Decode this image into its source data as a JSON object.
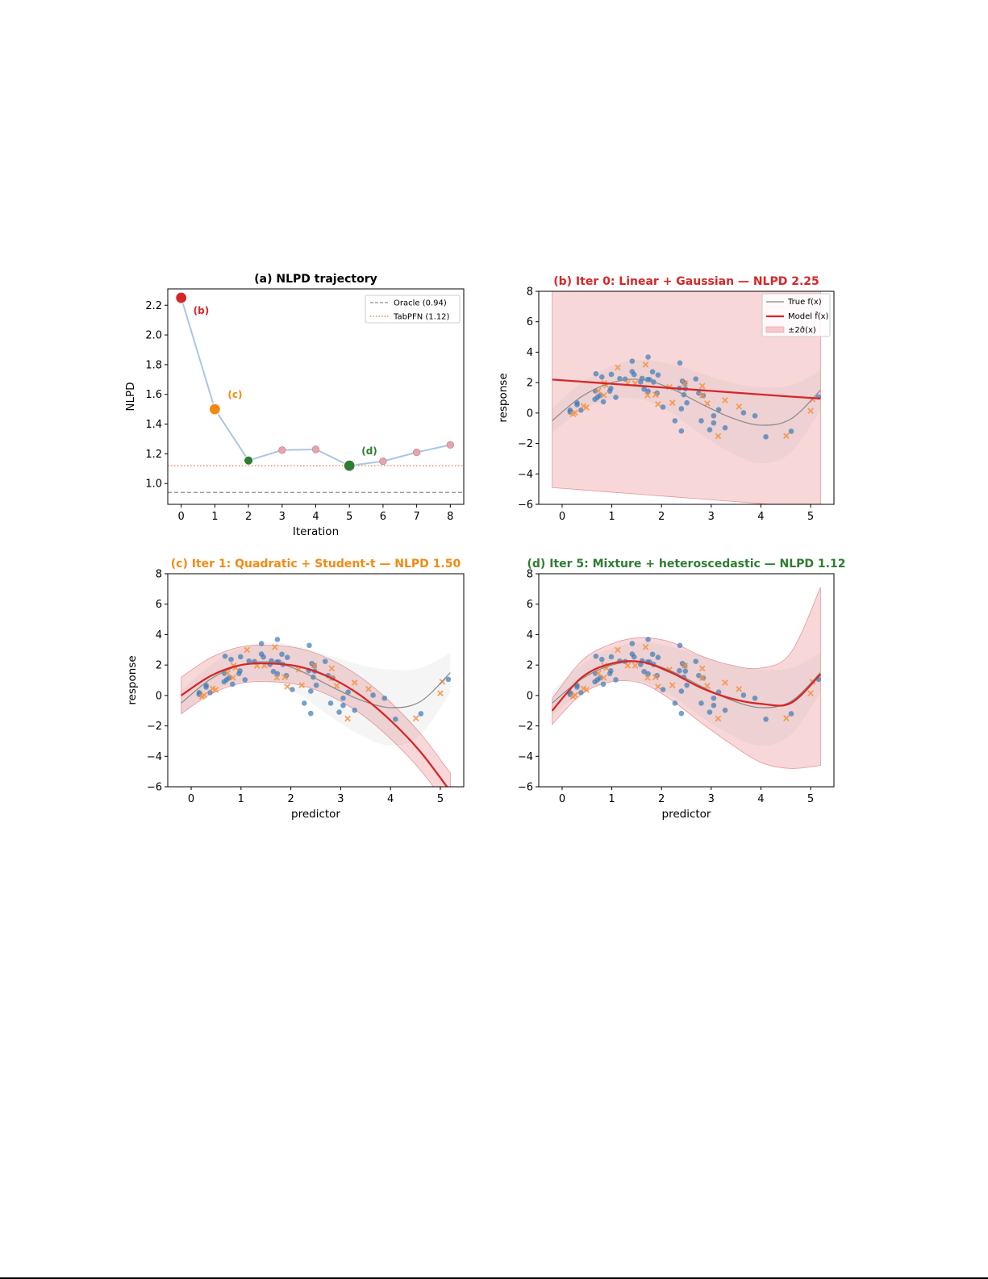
{
  "chart_data": [
    {
      "type": "line",
      "title": "(a) NLPD trajectory",
      "title_color": "#000000",
      "xlabel": "Iteration",
      "ylabel": "NLPD",
      "x": [
        0,
        1,
        2,
        3,
        4,
        5,
        6,
        7,
        8
      ],
      "y": [
        2.25,
        1.5,
        1.155,
        1.225,
        1.23,
        1.12,
        1.15,
        1.21,
        1.26
      ],
      "xlim": [
        -0.4,
        8.4
      ],
      "ylim": [
        0.86,
        2.31
      ],
      "xticks": [
        "0",
        "1",
        "2",
        "3",
        "4",
        "5",
        "6",
        "7",
        "8"
      ],
      "yticks": [
        "1.0",
        "1.2",
        "1.4",
        "1.6",
        "1.8",
        "2.0",
        "2.2"
      ],
      "line_color": "#a9c6e6",
      "highlights": [
        {
          "iteration": 0,
          "label": "(b)",
          "color": "#d62728"
        },
        {
          "iteration": 1,
          "label": "(c)",
          "color": "#f28a12"
        },
        {
          "iteration": 5,
          "label": "(d)",
          "color": "#2e7d32"
        }
      ],
      "accepted_color": "#2e7d32",
      "rejected_color": "#e8a4ad",
      "reference_lines": [
        {
          "name": "Oracle (0.94)",
          "value": 0.94,
          "style": "dashed",
          "color": "#8c8c8c"
        },
        {
          "name": "TabPFN (1.12)",
          "value": 1.12,
          "style": "dotted",
          "color": "#e07b39"
        }
      ],
      "legend": "top-right",
      "grid": false
    },
    {
      "type": "scatter",
      "title": "(b) Iter 0: Linear + Gaussian — NLPD 2.25",
      "title_color": "#d62728",
      "xlabel": "",
      "ylabel": "response",
      "xlim": [
        -0.47,
        5.47
      ],
      "ylim": [
        -6,
        8
      ],
      "model_mean": [
        2.2,
        2.06,
        1.92,
        1.78,
        1.64,
        1.5,
        1.36,
        1.22,
        1.08,
        0.95
      ],
      "model_upper": [
        9.3,
        9.5,
        9.7,
        9.9,
        10.1,
        10.3,
        10.5,
        10.7,
        10.9,
        11.1
      ],
      "model_lower": [
        -4.9,
        -5.05,
        -5.2,
        -5.35,
        -5.5,
        -5.65,
        -5.8,
        -5.95,
        -6.1,
        -6.25
      ],
      "legend_entries": [
        "True f(x)",
        "Model f̂(x)",
        "±2σ̂(x)"
      ],
      "legend": "top-right"
    },
    {
      "type": "scatter",
      "title": "(c) Iter 1: Quadratic + Student-t — NLPD 1.50",
      "title_color": "#f28a12",
      "xlabel": "predictor",
      "ylabel": "response",
      "xlim": [
        -0.47,
        5.47
      ],
      "ylim": [
        -6,
        8
      ],
      "model_mean": [
        0.0,
        1.3,
        2.0,
        2.1,
        1.87,
        1.16,
        0.0,
        -1.64,
        -3.7,
        -6.3
      ],
      "model_upper": [
        1.2,
        2.5,
        3.2,
        3.3,
        3.07,
        2.36,
        1.2,
        -0.44,
        -2.5,
        -5.1
      ],
      "model_lower": [
        -1.2,
        0.1,
        0.8,
        0.9,
        0.67,
        -0.04,
        -1.2,
        -2.84,
        -4.9,
        -7.5
      ]
    },
    {
      "type": "scatter",
      "title": "(d) Iter 5: Mixture + heteroscedastic — NLPD 1.12",
      "title_color": "#2e7d32",
      "xlabel": "predictor",
      "ylabel": "",
      "xlim": [
        -0.47,
        5.47
      ],
      "ylim": [
        -6,
        8
      ],
      "model_mean": [
        -1.0,
        1.2,
        2.1,
        2.2,
        1.5,
        0.5,
        -0.2,
        -0.55,
        -0.5,
        1.4
      ],
      "model_upper": [
        -0.2,
        2.3,
        3.4,
        3.8,
        3.5,
        2.6,
        2.0,
        1.8,
        2.8,
        7.1
      ],
      "model_lower": [
        -1.9,
        0.1,
        0.9,
        0.8,
        -0.3,
        -1.8,
        -3.2,
        -4.4,
        -4.8,
        -4.6
      ]
    }
  ],
  "shared": {
    "curve_x": [
      -0.2,
      0.4,
      1.0,
      1.6,
      2.2,
      2.8,
      3.4,
      4.0,
      4.6,
      5.2
    ],
    "true_f": [
      -0.5,
      1.1,
      2.0,
      2.2,
      1.6,
      0.6,
      -0.3,
      -0.8,
      -0.4,
      1.5
    ],
    "true_band_halfwidth": [
      0.8,
      0.9,
      1.1,
      1.3,
      1.6,
      2.0,
      2.3,
      2.5,
      2.2,
      1.3
    ],
    "xticks": [
      "0",
      "1",
      "2",
      "3",
      "4",
      "5"
    ],
    "yticks": [
      "−6",
      "−4",
      "−2",
      "0",
      "2",
      "4",
      "6",
      "8"
    ],
    "circle_color": "#3a7ab8",
    "cross_color": "#f5923e",
    "model_color": "#d62728",
    "circles": [
      [
        0.16,
        0.19
      ],
      [
        0.16,
        0.07
      ],
      [
        0.3,
        0.67
      ],
      [
        0.3,
        0.55
      ],
      [
        0.38,
        0.19
      ],
      [
        0.68,
        2.58
      ],
      [
        0.8,
        2.37
      ],
      [
        0.99,
        2.54
      ],
      [
        0.67,
        1.45
      ],
      [
        0.66,
        0.9
      ],
      [
        0.71,
        1.03
      ],
      [
        0.76,
        1.15
      ],
      [
        0.83,
        0.74
      ],
      [
        0.96,
        1.44
      ],
      [
        0.98,
        1.62
      ],
      [
        1.08,
        1.03
      ],
      [
        1.16,
        2.26
      ],
      [
        1.27,
        2.23
      ],
      [
        1.41,
        3.41
      ],
      [
        1.41,
        2.72
      ],
      [
        1.45,
        2.53
      ],
      [
        1.73,
        3.68
      ],
      [
        1.82,
        2.71
      ],
      [
        1.93,
        2.5
      ],
      [
        1.61,
        2.28
      ],
      [
        1.72,
        2.2
      ],
      [
        1.76,
        2.2
      ],
      [
        1.84,
        2.04
      ],
      [
        1.58,
        2.04
      ],
      [
        1.65,
        1.57
      ],
      [
        1.73,
        1.43
      ],
      [
        1.91,
        1.31
      ],
      [
        2.03,
        0.39
      ],
      [
        2.37,
        3.29
      ],
      [
        2.42,
        2.1
      ],
      [
        2.36,
        1.63
      ],
      [
        2.48,
        1.6
      ],
      [
        2.47,
        1.96
      ],
      [
        2.45,
        1.2
      ],
      [
        2.51,
        0.67
      ],
      [
        2.4,
        0.28
      ],
      [
        2.27,
        -0.51
      ],
      [
        2.4,
        -1.18
      ],
      [
        2.69,
        2.24
      ],
      [
        2.75,
        1.31
      ],
      [
        2.84,
        1.15
      ],
      [
        2.8,
        -0.51
      ],
      [
        3.05,
        -0.18
      ],
      [
        3.15,
        0.22
      ],
      [
        3.05,
        -0.65
      ],
      [
        2.97,
        -1.1
      ],
      [
        3.28,
        -0.97
      ],
      [
        3.65,
        0.02
      ],
      [
        3.88,
        -0.18
      ],
      [
        4.1,
        -1.56
      ],
      [
        4.61,
        -1.2
      ],
      [
        5.16,
        1.06
      ]
    ],
    "crosses": [
      [
        0.22,
        -0.07
      ],
      [
        0.26,
        0.02
      ],
      [
        0.43,
        0.46
      ],
      [
        0.49,
        0.37
      ],
      [
        0.84,
        1.17
      ],
      [
        0.73,
        1.47
      ],
      [
        0.85,
        1.96
      ],
      [
        0.89,
        1.82
      ],
      [
        1.12,
        2.99
      ],
      [
        1.32,
        1.96
      ],
      [
        1.47,
        1.96
      ],
      [
        1.68,
        3.18
      ],
      [
        1.72,
        1.17
      ],
      [
        1.88,
        1.2
      ],
      [
        1.93,
        0.58
      ],
      [
        2.16,
        1.7
      ],
      [
        2.22,
        0.67
      ],
      [
        2.47,
        1.96
      ],
      [
        2.82,
        1.78
      ],
      [
        2.82,
        1.15
      ],
      [
        2.92,
        0.63
      ],
      [
        3.28,
        0.84
      ],
      [
        3.56,
        0.42
      ],
      [
        3.14,
        -1.52
      ],
      [
        4.51,
        -1.5
      ],
      [
        5.0,
        0.14
      ],
      [
        5.04,
        0.9
      ]
    ]
  }
}
